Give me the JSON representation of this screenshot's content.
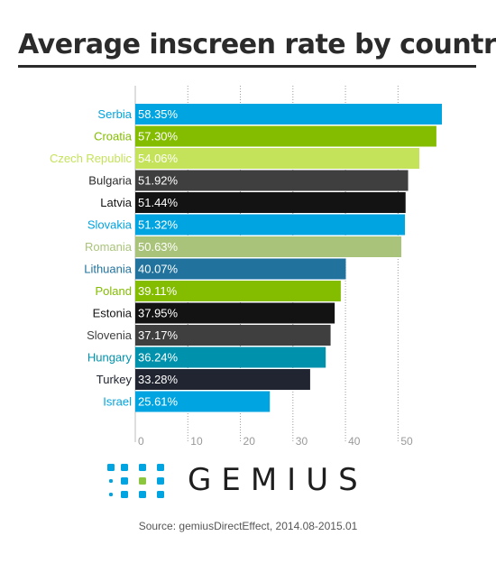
{
  "title": "Average inscreen rate by country",
  "source": "Source: gemiusDirectEffect, 2014.08-2015.01",
  "brand": {
    "name": "GEMIUS",
    "logo_icon": "gemius-dots-logo-icon"
  },
  "colors": {
    "text_dark": "#2b2b2b",
    "tick_text": "#999999",
    "brand_blue": "#00a4e0",
    "brand_green": "#8cc63f"
  },
  "chart_data": {
    "type": "bar",
    "orientation": "horizontal",
    "title": "Average inscreen rate by country",
    "xlim": [
      0,
      58.35
    ],
    "x_ticks": [
      0,
      10,
      20,
      30,
      40,
      50
    ],
    "grid": "vertical-dotted",
    "categories": [
      "Serbia",
      "Croatia",
      "Czech Republic",
      "Bulgaria",
      "Latvia",
      "Slovakia",
      "Romania",
      "Lithuania",
      "Poland",
      "Estonia",
      "Slovenia",
      "Hungary",
      "Turkey",
      "Israel"
    ],
    "values": [
      58.35,
      57.3,
      54.06,
      51.92,
      51.44,
      51.32,
      50.63,
      40.07,
      39.11,
      37.95,
      37.17,
      36.24,
      33.28,
      25.61
    ],
    "value_labels": [
      "58.35%",
      "57.30%",
      "54.06%",
      "51.92%",
      "51.44%",
      "51.32%",
      "50.63%",
      "40.07%",
      "39.11%",
      "37.95%",
      "37.17%",
      "36.24%",
      "33.28%",
      "25.61%"
    ],
    "bar_colors": [
      "#00a4e0",
      "#84bd00",
      "#c4e35a",
      "#3e3f3e",
      "#131313",
      "#00a4e0",
      "#a9c47a",
      "#21739e",
      "#84bd00",
      "#131313",
      "#3e3f3e",
      "#0092ad",
      "#202531",
      "#00a4e0"
    ],
    "label_colors": [
      "#00a4e0",
      "#84bd00",
      "#c4e35a",
      "#2b2b2b",
      "#131313",
      "#00a4e0",
      "#a9c47a",
      "#21739e",
      "#84bd00",
      "#131313",
      "#3e3f3e",
      "#0092ad",
      "#202531",
      "#00a4e0"
    ]
  }
}
